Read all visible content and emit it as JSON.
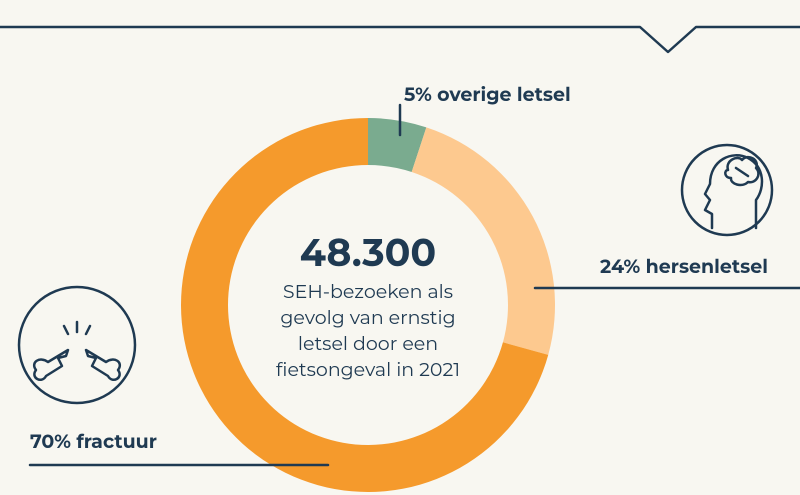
{
  "chart_data": {
    "type": "donut",
    "values": [
      5,
      24,
      70
    ],
    "value_labels": [
      "5% overige letsel",
      "24% hersenletsel",
      "70% fractuur"
    ],
    "colors": [
      "#7aab8f",
      "#fdc98f",
      "#f59a2c"
    ],
    "annotations": [
      "48.300",
      "SEH-bezoeken als",
      "gevolg van ernstig",
      "letsel door een",
      "fietsongeval in 2021"
    ]
  }
}
